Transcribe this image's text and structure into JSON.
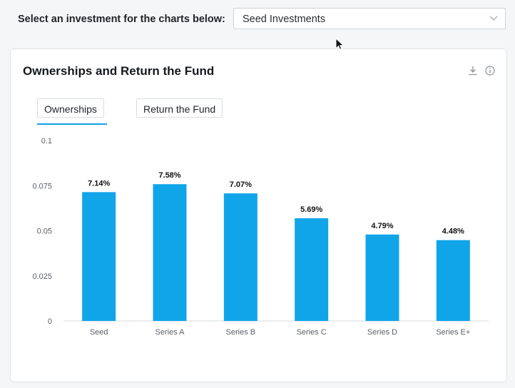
{
  "selector": {
    "label": "Select an investment for the charts below:",
    "value": "Seed Investments",
    "chevron_icon": "chevron-down-icon"
  },
  "card": {
    "title": "Ownerships and Return the Fund",
    "download_icon": "download-icon",
    "info_icon": "info-icon",
    "tabs": [
      {
        "label": "Ownerships",
        "active": true
      },
      {
        "label": "Return the Fund",
        "active": false
      }
    ]
  },
  "colors": {
    "bar": "#10a5e9",
    "accent": "#14a0e2"
  },
  "chart_data": {
    "type": "bar",
    "categories": [
      "Seed",
      "Series A",
      "Series B",
      "Series C",
      "Series D",
      "Series E+"
    ],
    "values": [
      0.0714,
      0.0758,
      0.0707,
      0.0569,
      0.0479,
      0.0448
    ],
    "data_labels": [
      "7.14%",
      "7.58%",
      "7.07%",
      "5.69%",
      "4.79%",
      "4.48%"
    ],
    "yticks": [
      "0",
      "0.025",
      "0.05",
      "0.075",
      "0.1"
    ],
    "ylim": [
      0,
      0.1
    ],
    "grid": false,
    "legend": "none"
  }
}
